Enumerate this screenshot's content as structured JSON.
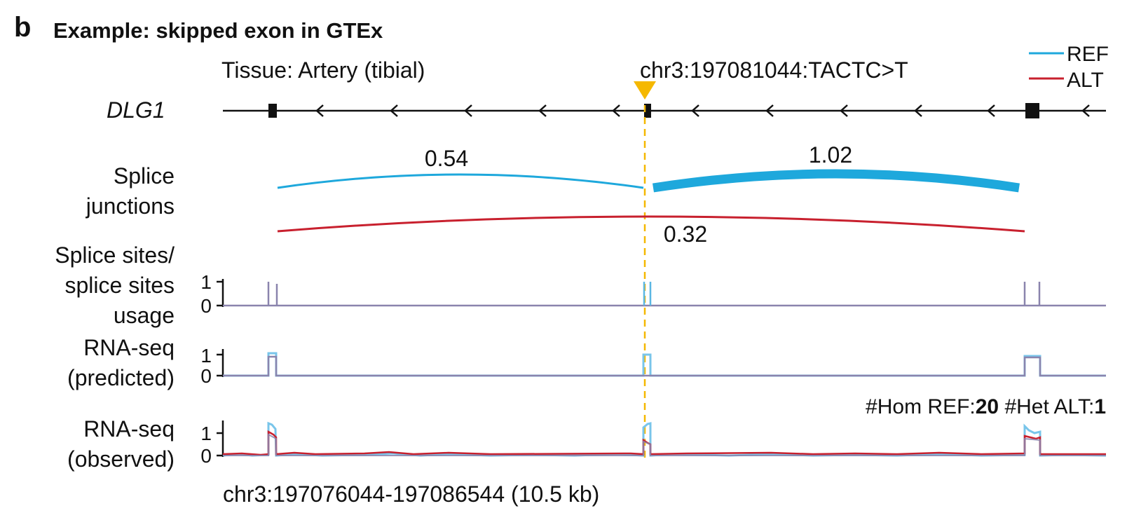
{
  "panel_letter": "b",
  "title": "Example: skipped exon in GTEx",
  "tissue_label": "Tissue: Artery (tibial)",
  "variant_label": "chr3:197081044:TACTC>T",
  "gene_name": "DLG1",
  "legend": [
    {
      "label": "REF",
      "color": "#1ea8dc"
    },
    {
      "label": "ALT",
      "color": "#c8202e"
    }
  ],
  "track_labels": {
    "junctions": [
      "Splice",
      "junctions"
    ],
    "sites": [
      "Splice sites/",
      "splice sites",
      "usage"
    ],
    "predicted": [
      "RNA-seq",
      "(predicted)"
    ],
    "observed": [
      "RNA-seq",
      "(observed)"
    ]
  },
  "axis_ticks": [
    "1",
    "0"
  ],
  "junctions": [
    {
      "label": "0.54",
      "allele": "REF",
      "from": "exon1",
      "to": "exon2",
      "weight": 0.54
    },
    {
      "label": "1.02",
      "allele": "REF",
      "from": "exon2",
      "to": "exon3",
      "weight": 1.02
    },
    {
      "label": "0.32",
      "allele": "ALT",
      "from": "exon1",
      "to": "exon3",
      "weight": 0.32
    }
  ],
  "counts": {
    "hom_ref_prefix": "#Hom REF:",
    "hom_ref_count": "20",
    "het_alt_prefix": " #Het ALT:",
    "het_alt_count": "1"
  },
  "region_label": "chr3:197076044-197086544 (10.5 kb)",
  "colors": {
    "ref": "#1ea8dc",
    "ref_light": "#79c5ea",
    "alt": "#c8202e",
    "mix": "#8a84ad",
    "marker": "#f5b800",
    "line": "#111111"
  }
}
